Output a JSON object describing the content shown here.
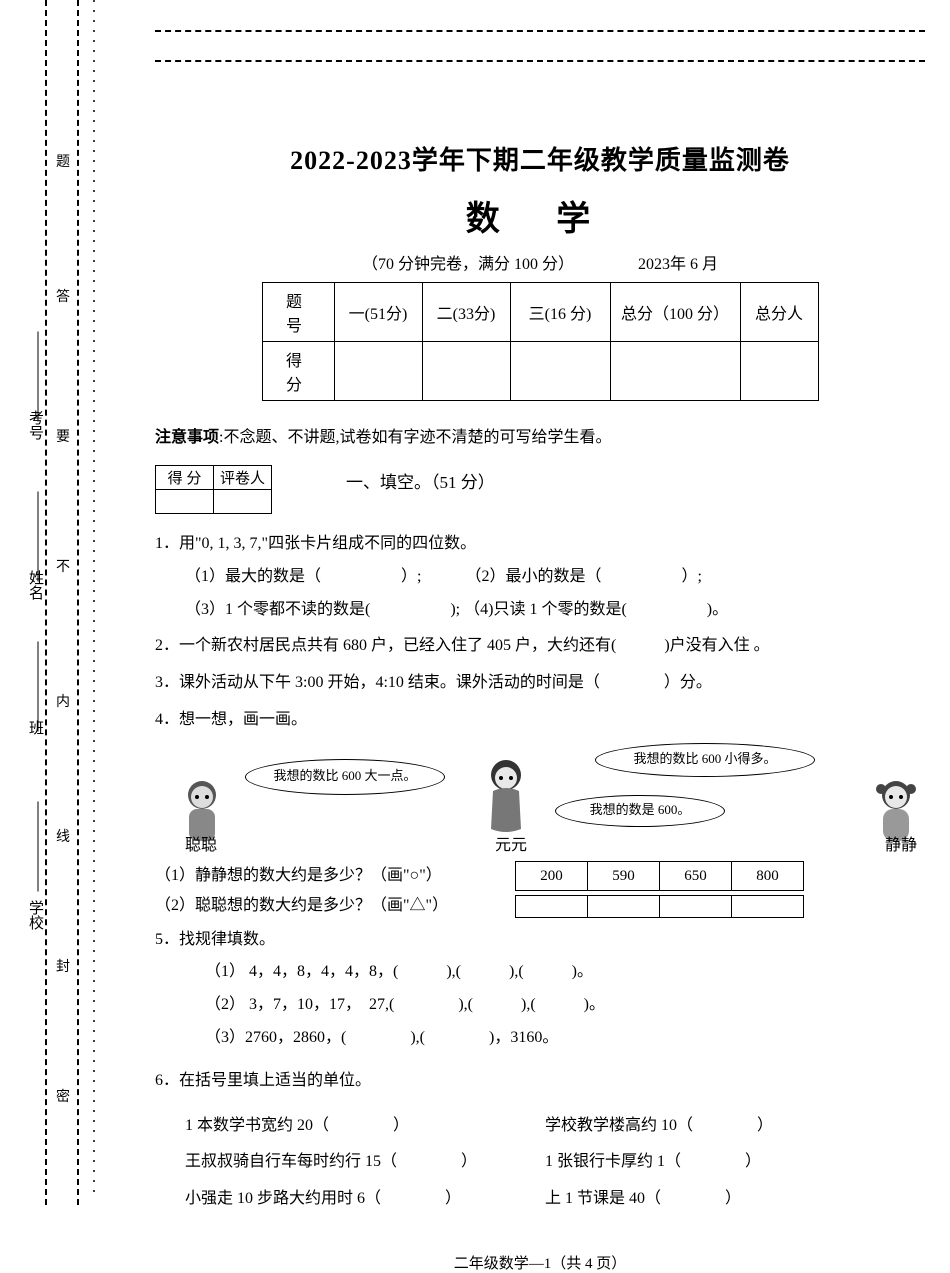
{
  "binding": {
    "outer_labels": [
      "考号",
      "姓名",
      "班",
      "学校"
    ],
    "inner_labels": [
      "题",
      "答",
      "要",
      "不",
      "内",
      "线",
      "封",
      "密"
    ]
  },
  "header": {
    "title_line1": "2022-2023学年下期二年级教学质量监测卷",
    "title_line2": "数 学",
    "time_info": "（70 分钟完卷，满分 100 分）",
    "date": "2023年 6 月"
  },
  "score_table": {
    "row1": [
      "题　号",
      "一(51分)",
      "二(33分)",
      "三(16 分)",
      "总分（100 分）",
      "总分人"
    ],
    "row2_label": "得　分"
  },
  "notice": {
    "label": "注意事项",
    "text": ":不念题、不讲题,试卷如有字迹不清楚的可写给学生看。"
  },
  "mini_table": {
    "c1": "得 分",
    "c2": "评卷人"
  },
  "section1_title": "一、填空。（51 分）",
  "q1": {
    "stem": "1．用\"0, 1, 3, 7,\"四张卡片组成不同的四位数。",
    "p1": "（1）最大的数是（　　　　　）;",
    "p2": "（2）最小的数是（　　　　　）;",
    "p3": "（3）1 个零都不读的数是(　　　　　);",
    "p4": "（4)只读 1 个零的数是(　　　　　)。"
  },
  "q2": "2．一个新农村居民点共有 680 户，已经入住了 405 户，大约还有(　　　)户没有入住 。",
  "q3": "3．课外活动从下午 3:00 开始，4:10 结束。课外活动的时间是（　　　　）分。",
  "q4": {
    "stem": "4．想一想，画一画。",
    "bubble_left": "我想的数比 600 大一点。",
    "bubble_mid": "我想的数是 600。",
    "bubble_right": "我想的数比 600 小得多。",
    "name_left": "聪聪",
    "name_mid": "元元",
    "name_right": "静静",
    "sub1": "（1）静静想的数大约是多少？（画\"○\"）",
    "sub2": "（2）聪聪想的数大约是多少？（画\"△\"）",
    "options": [
      "200",
      "590",
      "650",
      "800"
    ]
  },
  "q5": {
    "stem": "5．找规律填数。",
    "l1": "（1） 4，4，8，4，4，8，(　　　),(　　　),(　　　)。",
    "l2": "（2） 3，7，10，17，　27,(　　　　),(　　　),(　　　)。",
    "l3": "（3）2760，2860，(　　　　),(　　　　)，3160。"
  },
  "q6": {
    "stem": "6．在括号里填上适当的单位。",
    "r1a": "1 本数学书宽约 20（　　　　）",
    "r1b": "学校教学楼高约 10（　　　　）",
    "r2a": "王叔叔骑自行车每时约行 15（　　　　）",
    "r2b": "1 张银行卡厚约 1（　　　　）",
    "r3a": "小强走 10 步路大约用时 6（　　　　）",
    "r3b": "上 1 节课是 40（　　　　）"
  },
  "footer": "二年级数学—1（共 4 页）",
  "style": {
    "page_bg": "#ffffff",
    "text_color": "#000000",
    "border_color": "#000000",
    "title1_fontsize": 26,
    "title2_fontsize": 34,
    "body_fontsize": 16
  }
}
